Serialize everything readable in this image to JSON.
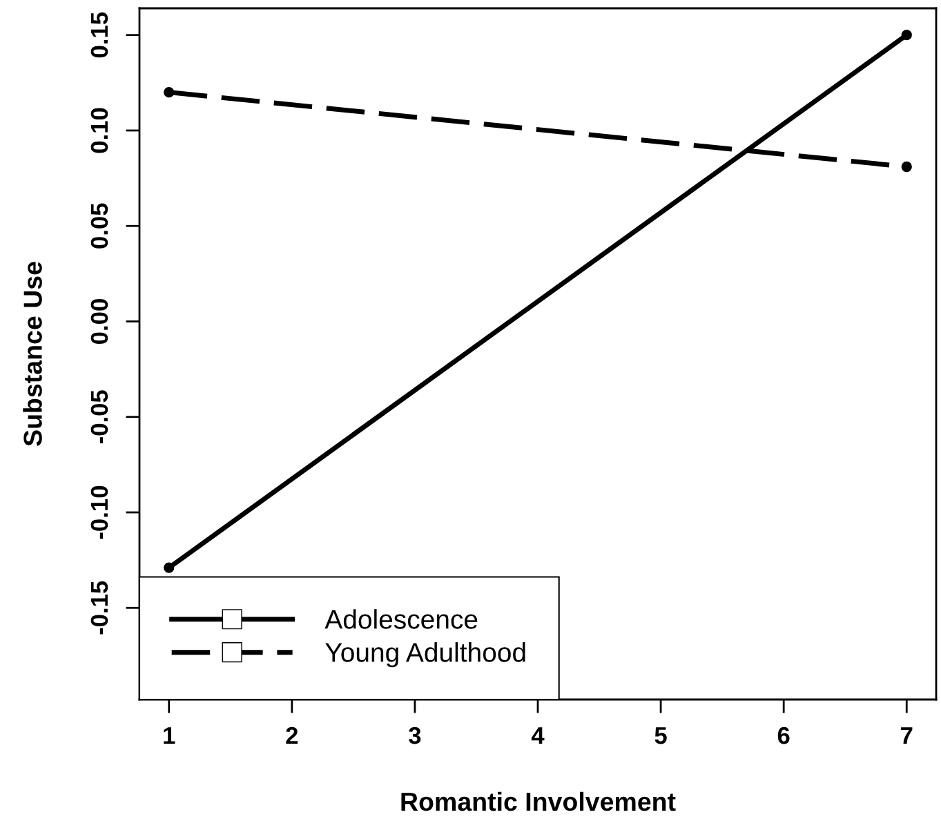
{
  "chart_data": {
    "type": "line",
    "xlabel": "Romantic Involvement",
    "ylabel": "Substance Use",
    "x": [
      1,
      7
    ],
    "series": [
      {
        "name": "Adolescence",
        "color": "#000000",
        "values": [
          -0.129,
          0.15
        ],
        "line_style": "solid"
      },
      {
        "name": "Young Adulthood",
        "color": "#000000",
        "values": [
          0.12,
          0.081
        ],
        "line_style": "dashed"
      }
    ],
    "xlim": [
      0.76,
      7.24
    ],
    "ylim": [
      -0.198,
      0.164
    ],
    "xticks": [
      1,
      2,
      3,
      4,
      5,
      6,
      7
    ],
    "yticks": [
      {
        "value": -0.15,
        "label": "-0.15"
      },
      {
        "value": -0.1,
        "label": "-0.10"
      },
      {
        "value": -0.05,
        "label": "-0.05"
      },
      {
        "value": 0,
        "label": "0.00"
      },
      {
        "value": 0.05,
        "label": "0.05"
      },
      {
        "value": 0.1,
        "label": "0.10"
      },
      {
        "value": 0.15,
        "label": "0.15"
      }
    ],
    "marker": "circle",
    "grid": false,
    "legend": "bottom left"
  }
}
